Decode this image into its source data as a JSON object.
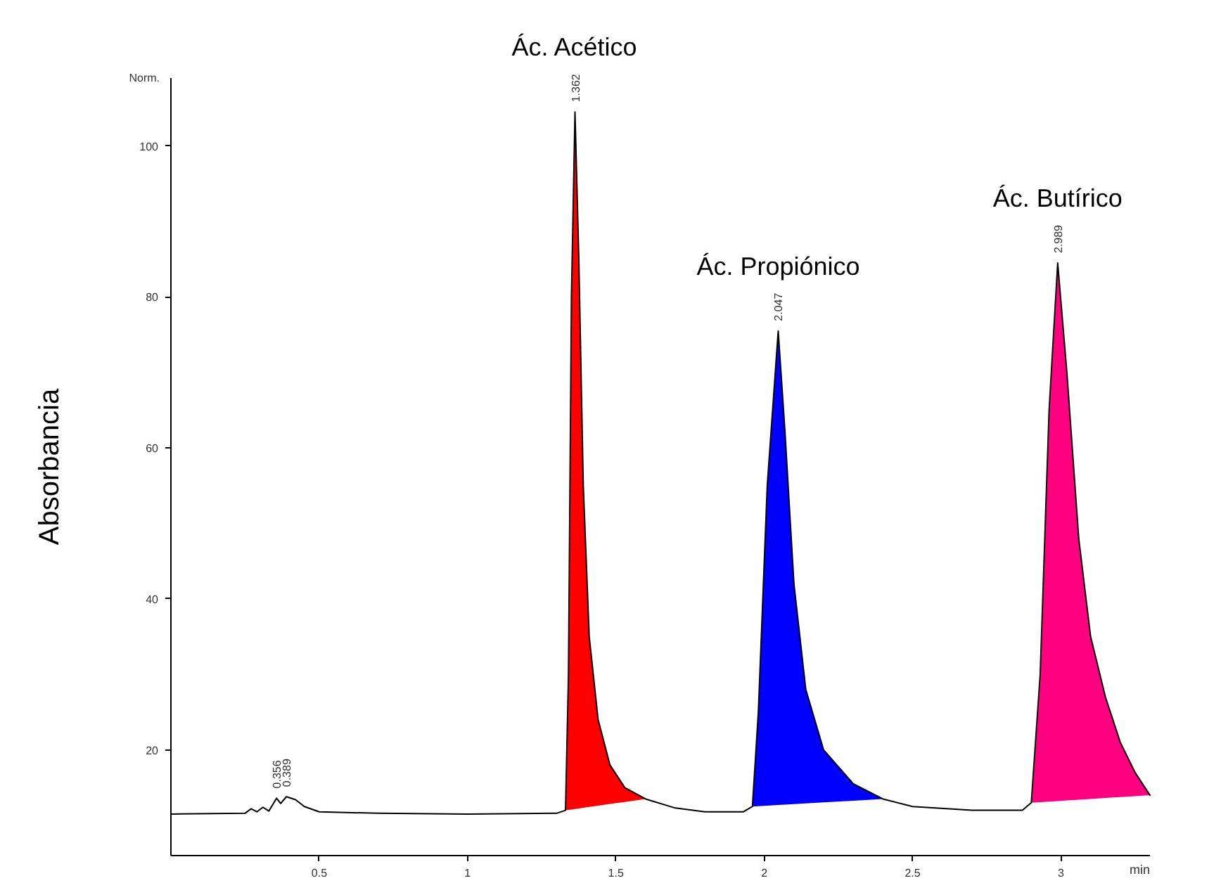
{
  "chart_data": {
    "type": "line",
    "xlabel": "min",
    "ylabel": "Absorbancia",
    "xlim": [
      0,
      3.3
    ],
    "ylim": [
      6,
      109
    ],
    "xticks": [
      0.5,
      1,
      1.5,
      2,
      2.5,
      3
    ],
    "yticks": [
      20,
      40,
      60,
      80,
      100
    ],
    "grid": false,
    "marker": "none",
    "line_style": "solid",
    "series": [
      {
        "type": "area",
        "color": "#ff0000",
        "x": [
          1.33,
          1.34,
          1.35,
          1.362,
          1.375,
          1.39,
          1.41,
          1.44,
          1.48,
          1.53,
          1.6
        ],
        "values": [
          12,
          30,
          80,
          104.5,
          85,
          55,
          35,
          24,
          18,
          15,
          13.5
        ]
      },
      {
        "type": "area",
        "color": "#0000ff",
        "x": [
          1.96,
          1.98,
          2.01,
          2.047,
          2.07,
          2.1,
          2.14,
          2.2,
          2.3,
          2.4
        ],
        "values": [
          12.5,
          25,
          55,
          75.5,
          62,
          42,
          28,
          20,
          15.5,
          13.5
        ]
      },
      {
        "type": "area",
        "color": "#ff0080",
        "x": [
          2.9,
          2.93,
          2.96,
          2.989,
          3.02,
          3.06,
          3.1,
          3.15,
          3.2,
          3.25,
          3.3
        ],
        "values": [
          13,
          30,
          65,
          84.5,
          70,
          48,
          35,
          27,
          21,
          17,
          14
        ]
      },
      {
        "color": "#000000",
        "x": [
          0,
          0.25,
          0.27,
          0.29,
          0.31,
          0.33,
          0.356,
          0.37,
          0.389,
          0.42,
          0.45,
          0.5,
          0.7,
          1.0,
          1.3,
          1.33,
          1.34,
          1.35,
          1.362,
          1.375,
          1.39,
          1.41,
          1.44,
          1.48,
          1.53,
          1.6,
          1.7,
          1.8,
          1.93,
          1.96,
          1.98,
          2.01,
          2.047,
          2.07,
          2.1,
          2.14,
          2.2,
          2.3,
          2.4,
          2.5,
          2.7,
          2.87,
          2.9,
          2.93,
          2.96,
          2.989,
          3.02,
          3.06,
          3.1,
          3.15,
          3.2,
          3.25,
          3.3
        ],
        "values": [
          11.5,
          11.6,
          12.2,
          11.8,
          12.4,
          11.9,
          13.6,
          12.9,
          13.8,
          13.4,
          12.5,
          11.8,
          11.6,
          11.5,
          11.6,
          12,
          30,
          80,
          104.5,
          85,
          55,
          35,
          24,
          18,
          15,
          13.5,
          12.3,
          11.8,
          11.8,
          12.5,
          25,
          55,
          75.5,
          62,
          42,
          28,
          20,
          15.5,
          13.5,
          12.5,
          12,
          12,
          13,
          30,
          65,
          84.5,
          70,
          48,
          35,
          27,
          21,
          17,
          14
        ]
      }
    ],
    "annotations": [
      "Norm.",
      {
        "text": "Ác. Acético",
        "x": 1.362,
        "y": 104.5
      },
      {
        "text": "Ác. Propiónico",
        "x": 2.047,
        "y": 75.5
      },
      {
        "text": "Ác. Butírico",
        "x": 2.989,
        "y": 84.5
      },
      {
        "text": "1.362",
        "x": 1.362,
        "y": 104.5
      },
      {
        "text": "2.047",
        "x": 2.047,
        "y": 75.5
      },
      {
        "text": "2.989",
        "x": 2.989,
        "y": 84.5
      },
      {
        "text": "0.356",
        "x": 0.356,
        "y": 13.6
      },
      {
        "text": "0.389",
        "x": 0.389,
        "y": 13.8
      }
    ]
  }
}
